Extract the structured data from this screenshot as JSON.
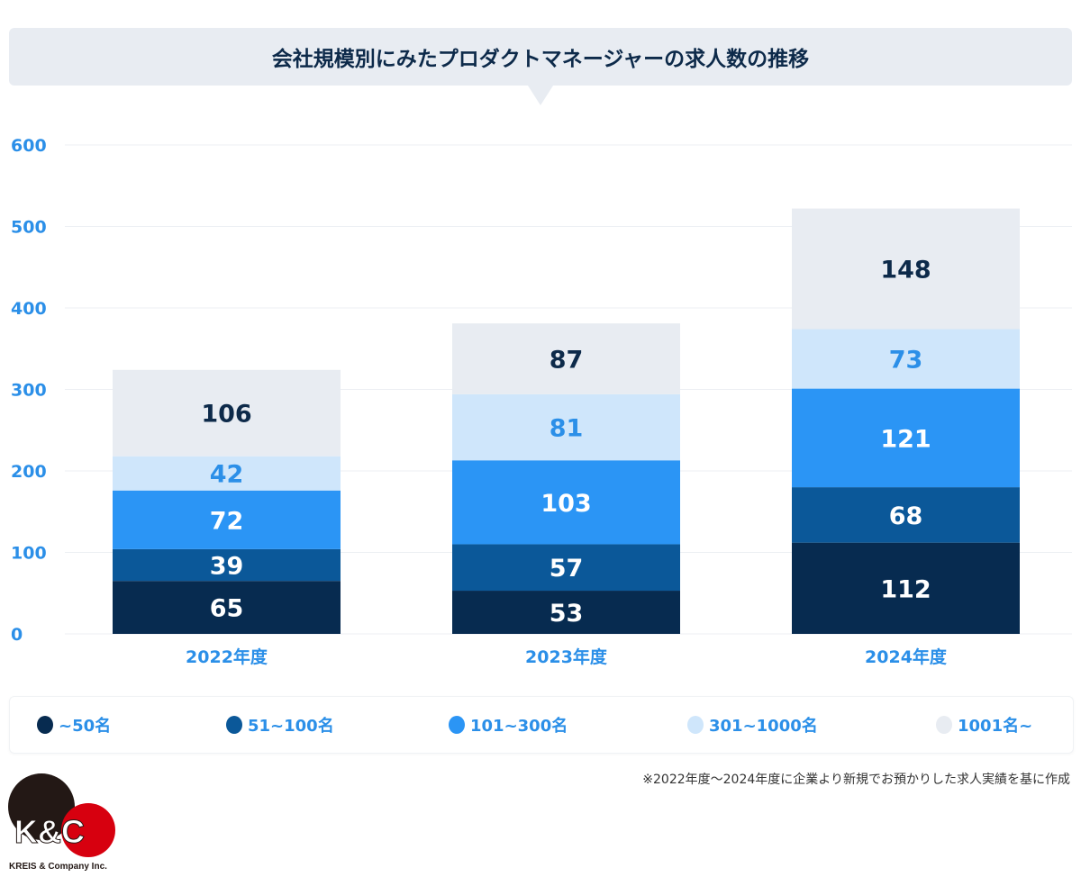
{
  "chart_data": {
    "type": "bar",
    "stacked": true,
    "title": "会社規模別にみたプロダクトマネージャーの求人数の推移",
    "categories": [
      "2022年度",
      "2023年度",
      "2024年度"
    ],
    "ylim": [
      0,
      600
    ],
    "yticks": [
      0,
      100,
      200,
      300,
      400,
      500,
      600
    ],
    "grid": true,
    "legend_placement": "bottom",
    "series": [
      {
        "name": "~50名",
        "values": [
          65,
          53,
          112
        ],
        "color": "#072b50",
        "label_color": "#ffffff"
      },
      {
        "name": "51~100名",
        "values": [
          39,
          57,
          68
        ],
        "color": "#0b5899",
        "label_color": "#ffffff"
      },
      {
        "name": "101~300名",
        "values": [
          72,
          103,
          121
        ],
        "color": "#2b95f5",
        "label_color": "#ffffff"
      },
      {
        "name": "301~1000名",
        "values": [
          42,
          81,
          73
        ],
        "color": "#cfe6fb",
        "label_color": "#2b8fe8"
      },
      {
        "name": "1001名~",
        "values": [
          106,
          87,
          148
        ],
        "color": "#e8ecf2",
        "label_color": "#0d2a4a"
      }
    ],
    "note": "※2022年度～2024年度に企業より新規でお預かりした求人実績を基に作成"
  },
  "logo": {
    "mark": "K&C",
    "company": "KREIS & Company Inc."
  }
}
